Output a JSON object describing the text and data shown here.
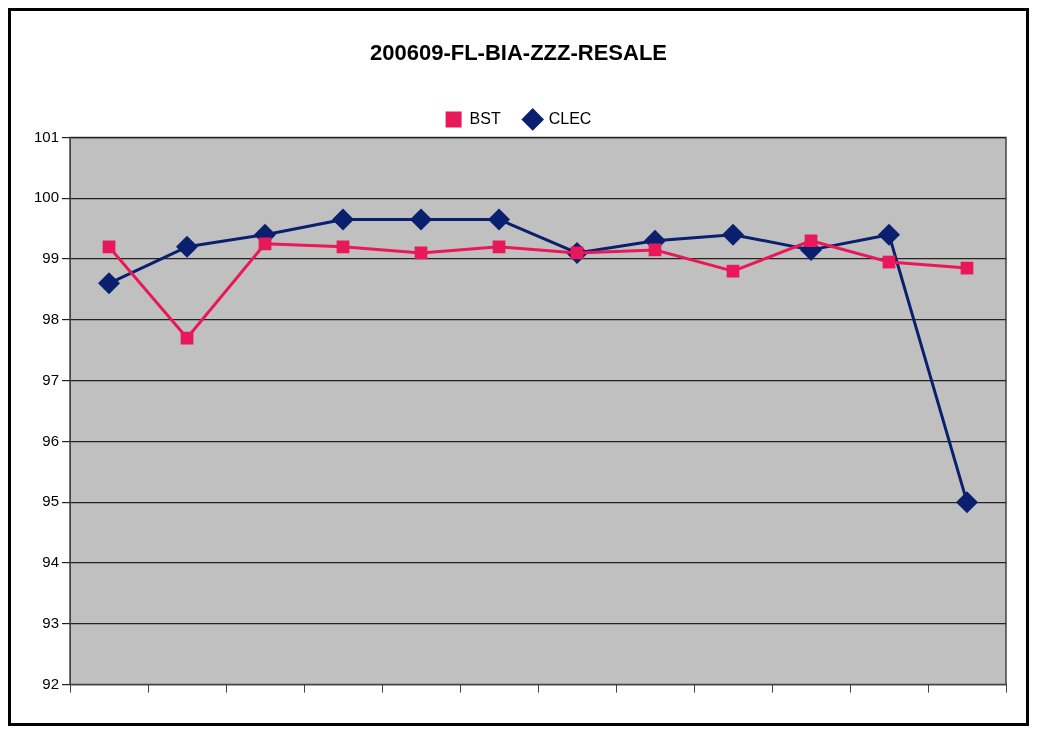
{
  "chart_data": {
    "type": "line",
    "title": "200609-FL-BIA-ZZZ-RESALE",
    "categories": [
      null,
      null,
      null,
      null,
      null,
      null,
      null,
      null,
      null,
      null,
      null,
      null
    ],
    "series": [
      {
        "name": "CLEC",
        "color": "#0a1f6e",
        "marker": "diamond",
        "values": [
          98.6,
          99.2,
          99.4,
          99.65,
          99.65,
          99.65,
          99.1,
          99.3,
          99.4,
          99.15,
          99.4,
          95.0
        ]
      },
      {
        "name": "BST",
        "color": "#e8185a",
        "marker": "square",
        "values": [
          99.2,
          97.7,
          99.25,
          99.2,
          99.1,
          99.2,
          99.1,
          99.15,
          98.8,
          99.3,
          98.95,
          98.85
        ]
      }
    ],
    "ylim": [
      92,
      101
    ],
    "yticks": [
      92,
      93,
      94,
      95,
      96,
      97,
      98,
      99,
      100,
      101
    ],
    "grid": "y",
    "legend": "top"
  }
}
